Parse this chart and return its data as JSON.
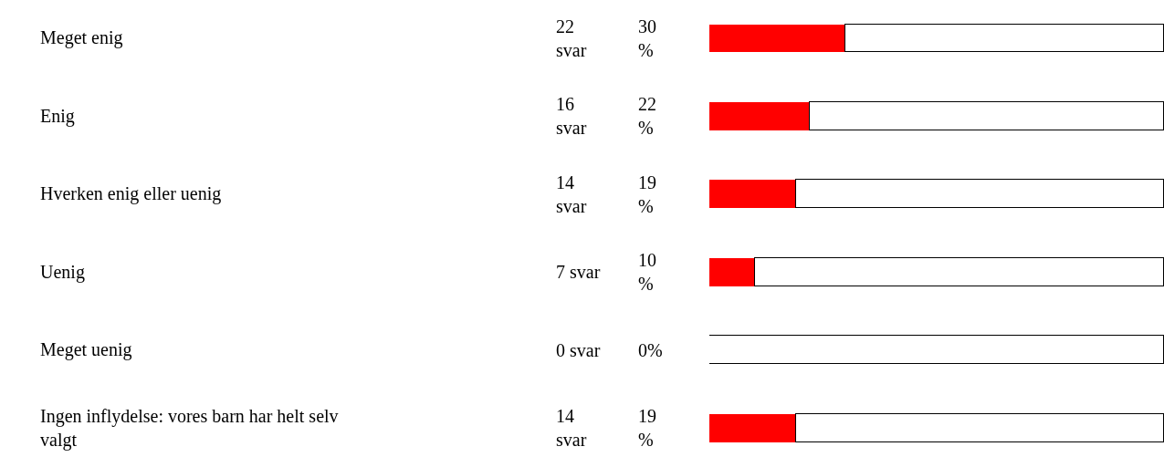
{
  "chart_data": {
    "type": "bar",
    "orientation": "horizontal",
    "stacked": true,
    "categories": [
      "Meget enig",
      "Enig",
      "Hverken enig eller uenig",
      "Uenig",
      "Meget uenig",
      "Ingen inflydelse: vores barn har helt selv valgt"
    ],
    "series": [
      {
        "color": "#ff0000",
        "values": [
          30,
          22,
          19,
          10,
          0,
          19
        ],
        "value_labels": [
          "30 %",
          "22 %",
          "19 %",
          "10 %",
          "0%",
          "19 %"
        ]
      },
      {
        "color": "#ffffff",
        "values": [
          70,
          78,
          81,
          90,
          100,
          81
        ]
      }
    ],
    "annotations": [
      "22 svar",
      "16 svar",
      "14 svar",
      "7 svar",
      "0 svar",
      "14 svar"
    ],
    "xlim": [
      0,
      100
    ],
    "tick_labels": false,
    "legend": false
  }
}
